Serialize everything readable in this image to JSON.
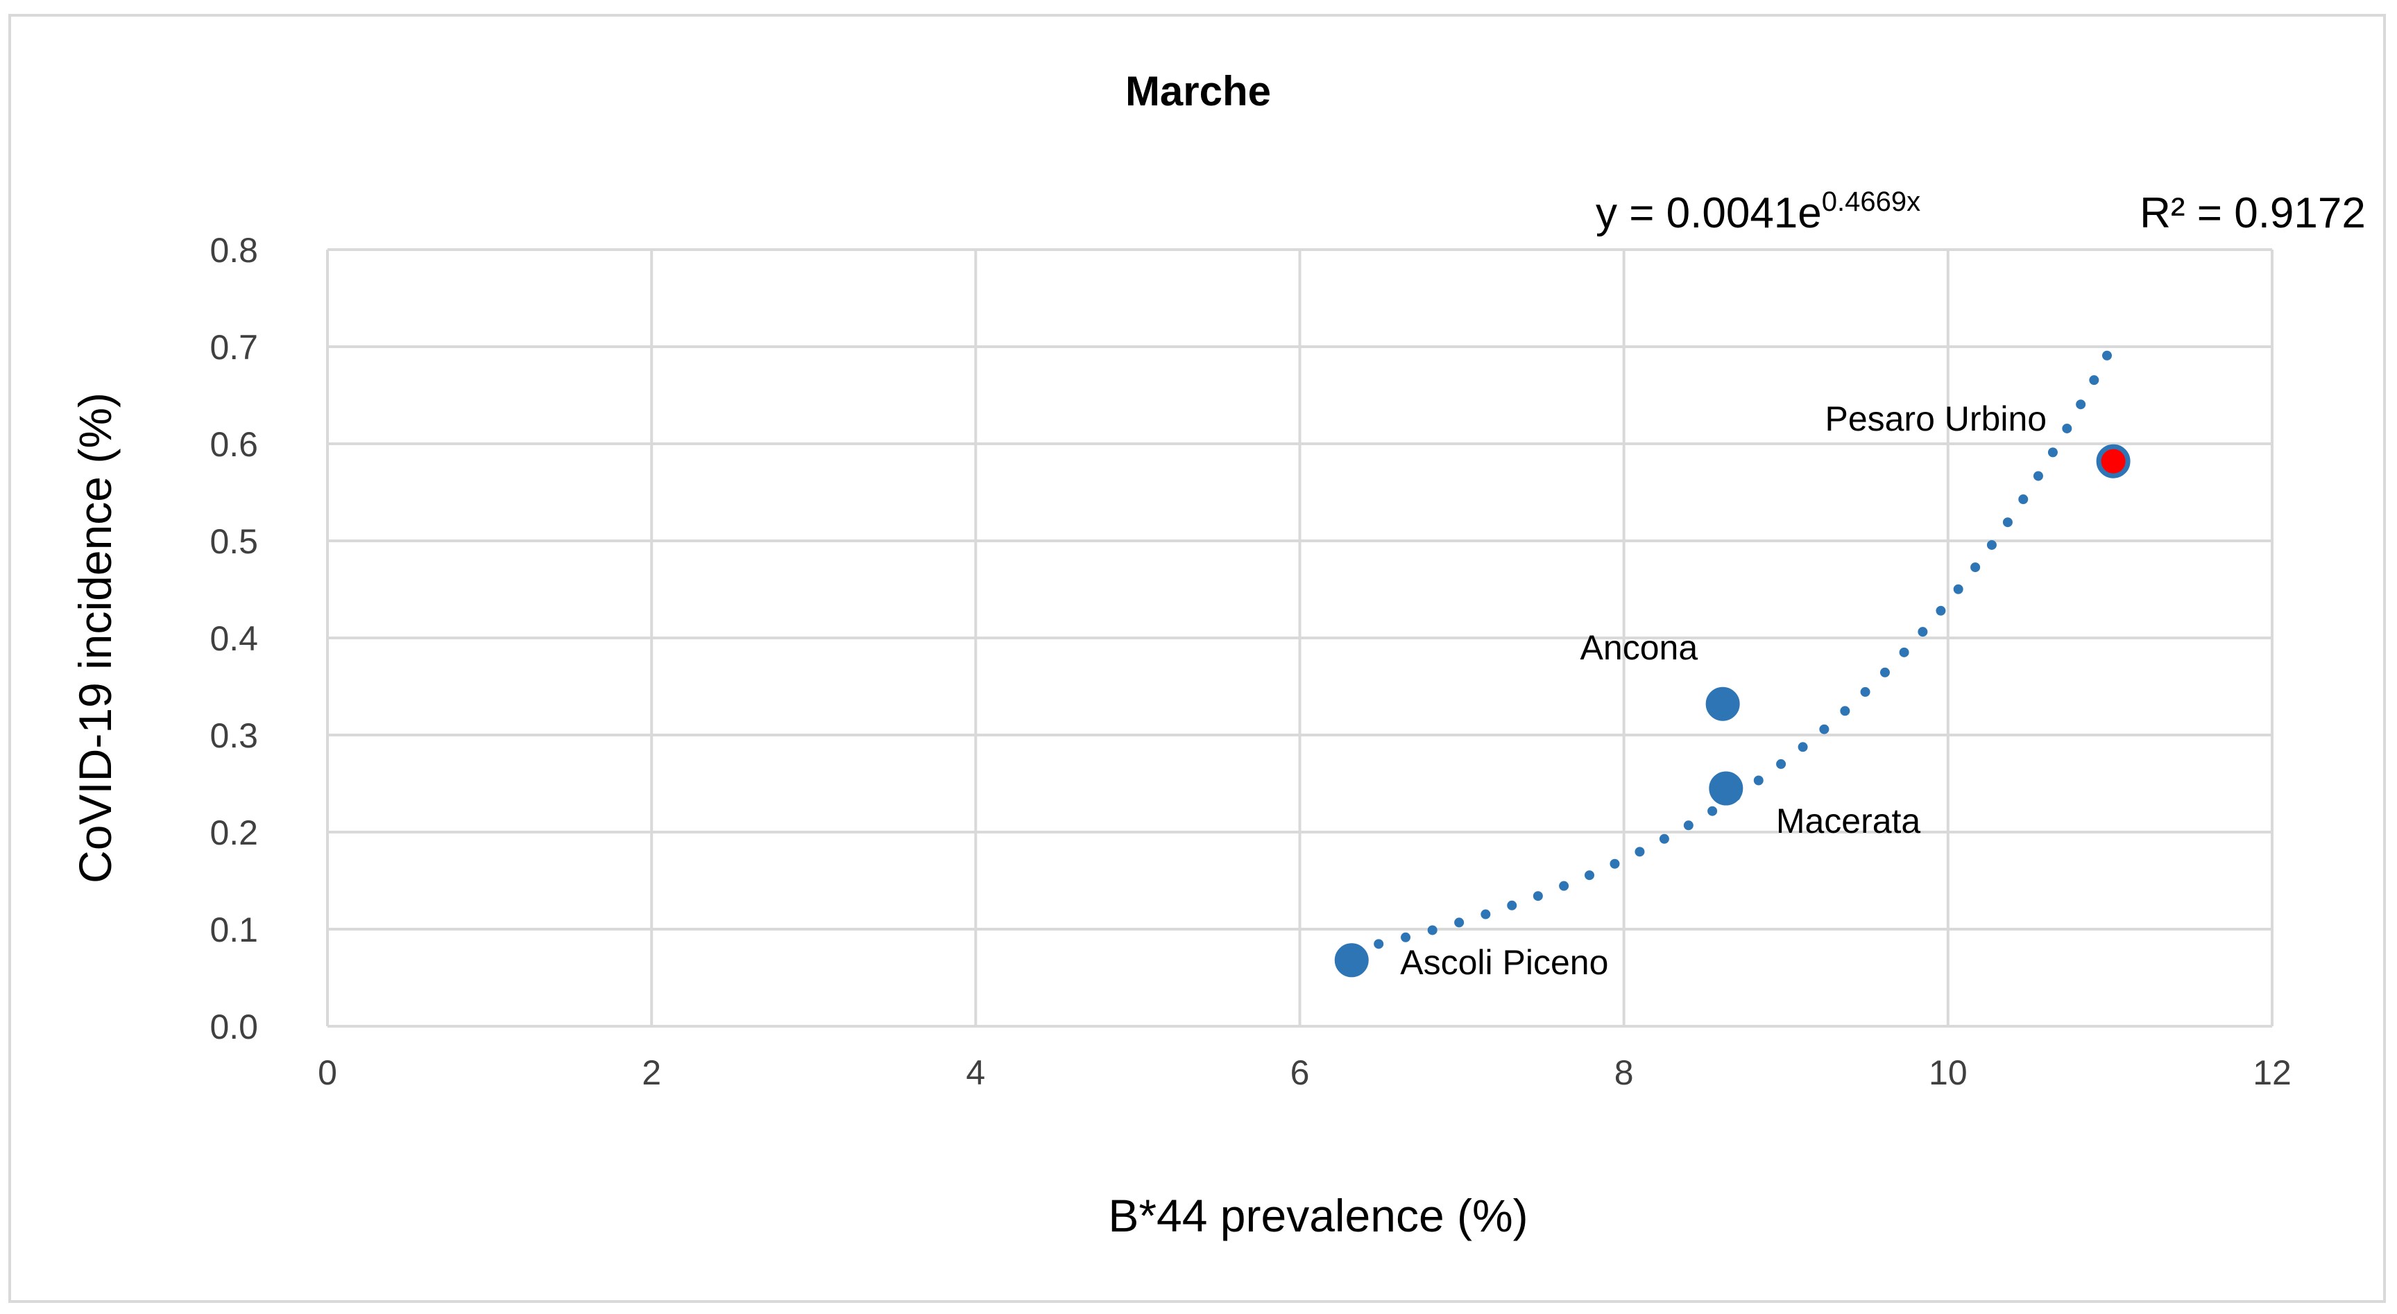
{
  "chart_data": {
    "type": "scatter",
    "title": "Marche",
    "xlabel": "B*44 prevalence (%)",
    "ylabel": "CoVID-19 incidence (%)",
    "xlim": [
      0,
      12
    ],
    "ylim": [
      0,
      0.8
    ],
    "x_ticks": [
      "0",
      "2",
      "4",
      "6",
      "8",
      "10",
      "12"
    ],
    "y_ticks": [
      "0.0",
      "0.1",
      "0.2",
      "0.3",
      "0.4",
      "0.5",
      "0.6",
      "0.7",
      "0.8"
    ],
    "grid": true,
    "points": [
      {
        "label": "Ascoli Piceno",
        "x": 6.32,
        "y": 0.068,
        "color": "#2e75b6"
      },
      {
        "label": "Macerata",
        "x": 8.63,
        "y": 0.245,
        "color": "#2e75b6"
      },
      {
        "label": "Ancona",
        "x": 8.61,
        "y": 0.332,
        "color": "#2e75b6"
      },
      {
        "label": "Pesaro Urbino",
        "x": 11.02,
        "y": 0.582,
        "color": "#ff0000"
      }
    ],
    "trendline": {
      "type": "exponential",
      "a": 0.0041,
      "b": 0.4669,
      "x_range": [
        6.32,
        11.0
      ],
      "equation_prefix": "y = 0.0041e",
      "equation_exponent": "0.4669x",
      "r_squared": "R² = 0.9172",
      "style": "dotted",
      "color": "#2e75b6"
    },
    "colors": {
      "series": "#2e75b6",
      "highlight": "#ff0000",
      "grid": "#d9d9d9"
    }
  }
}
